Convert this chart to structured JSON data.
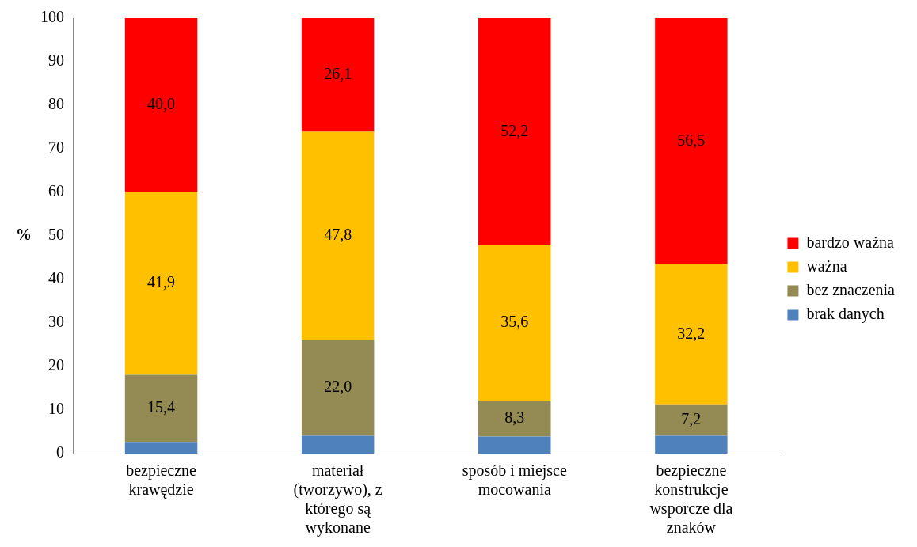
{
  "chart_data": {
    "type": "bar",
    "stacked": true,
    "ylabel": "%",
    "categories": [
      "bezpieczne krawędzie",
      "materiał (tworzywo), z którego są wykonane",
      "sposób i miejsce mocowania",
      "bezpieczne konstrukcje wsporcze dla znaków"
    ],
    "series": [
      {
        "name": "brak danych",
        "color": "#4f81bd",
        "values": [
          2.7,
          4.1,
          3.9,
          4.1
        ]
      },
      {
        "name": "bez znaczenia",
        "color": "#948a54",
        "values": [
          15.4,
          22.0,
          8.3,
          7.2
        ],
        "value_labels": [
          "15,4",
          "22,0",
          "8,3",
          "7,2"
        ]
      },
      {
        "name": "ważna",
        "color": "#ffc000",
        "values": [
          41.9,
          47.8,
          35.6,
          32.2
        ],
        "value_labels": [
          "41,9",
          "47,8",
          "35,6",
          "32,2"
        ]
      },
      {
        "name": "bardzo ważna",
        "color": "#ff0000",
        "values": [
          40.0,
          26.1,
          52.2,
          56.5
        ],
        "value_labels": [
          "40,0",
          "26,1",
          "52,2",
          "56,5"
        ]
      }
    ],
    "ylim": [
      0,
      100
    ],
    "yticks": [
      0,
      10,
      20,
      30,
      40,
      50,
      60,
      70,
      80,
      90,
      100
    ],
    "grid": false,
    "legend": "right"
  }
}
